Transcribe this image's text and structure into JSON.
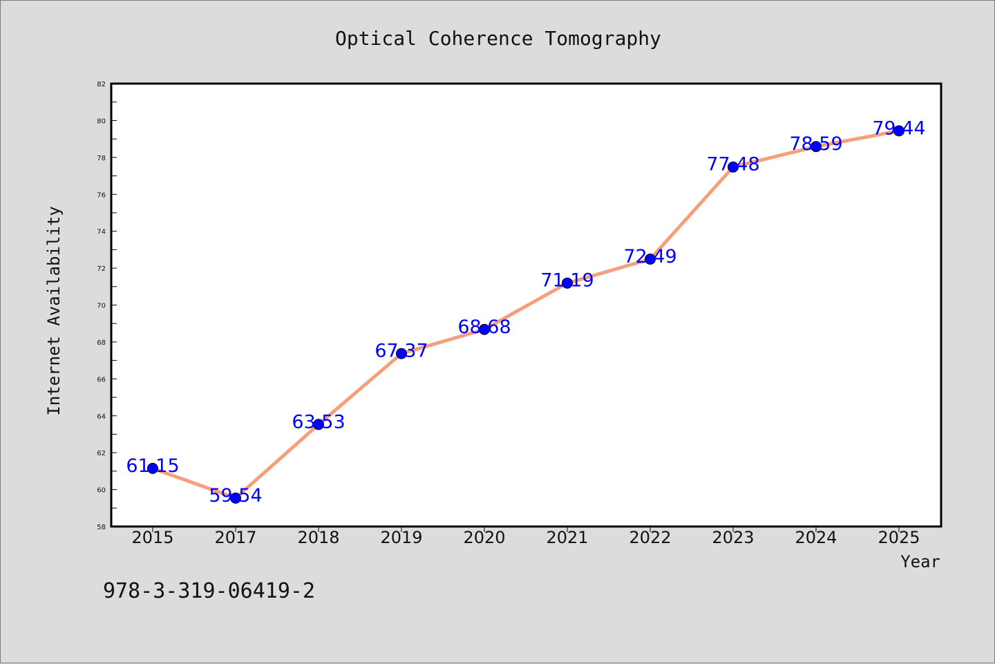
{
  "chart_data": {
    "type": "line",
    "title": "Optical Coherence Tomography",
    "xlabel": "Year",
    "ylabel": "Internet Availability",
    "categories": [
      "2015",
      "2017",
      "2018",
      "2019",
      "2020",
      "2021",
      "2022",
      "2023",
      "2024",
      "2025"
    ],
    "series": [
      {
        "values": [
          61.15,
          59.54,
          63.53,
          67.37,
          68.68,
          71.19,
          72.49,
          77.48,
          78.59,
          79.44
        ],
        "labels": [
          "61.15",
          "59.54",
          "63.53",
          "67.37",
          "68.68",
          "71.19",
          "72.49",
          "77.48",
          "78.59",
          "79.44"
        ]
      }
    ],
    "ylim": [
      58,
      82
    ],
    "yticks": [
      "58",
      "60",
      "62",
      "64",
      "66",
      "68",
      "70",
      "72",
      "74",
      "76",
      "78",
      "80",
      "82"
    ],
    "grid": false,
    "legend": "none",
    "colors": {
      "line": "#f5a07a",
      "marker": "#0000ff",
      "data_label": "#0000ff",
      "plot_background": "#ffffff",
      "figure_background": "#dcdcdc"
    }
  },
  "footnote": "978-3-319-06419-2"
}
